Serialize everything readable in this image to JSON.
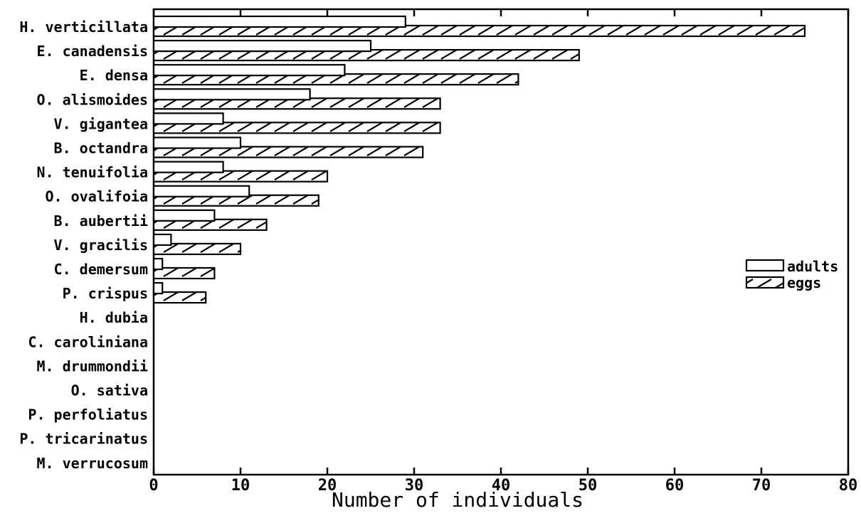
{
  "chart_data": {
    "type": "bar",
    "orientation": "horizontal",
    "title": "",
    "xlabel": "Number of individuals",
    "ylabel": "",
    "xlim": [
      0,
      80
    ],
    "x_ticks": [
      0,
      10,
      20,
      30,
      40,
      50,
      60,
      70,
      80
    ],
    "grid": false,
    "legend_position": "right",
    "categories": [
      "H. verticillata",
      "E. canadensis",
      "E. densa",
      "O. alismoides",
      "V. gigantea",
      "B. octandra",
      "N. tenuifolia",
      "O. ovalifoia",
      "B. aubertii",
      "V. gracilis",
      "C. demersum",
      "P. crispus",
      "H. dubia",
      "C. caroliniana",
      "M. drummondii",
      "O. sativa",
      "P. perfoliatus",
      "P. tricarinatus",
      "M. verrucosum"
    ],
    "series": [
      {
        "name": "adults",
        "pattern": "open",
        "values": [
          29,
          25,
          22,
          18,
          8,
          10,
          8,
          11,
          7,
          2,
          1,
          1,
          0,
          0,
          0,
          0,
          0,
          0,
          0
        ]
      },
      {
        "name": "eggs",
        "pattern": "hatched",
        "values": [
          75,
          49,
          42,
          33,
          33,
          31,
          20,
          19,
          13,
          10,
          7,
          6,
          0,
          0,
          0,
          0,
          0,
          0,
          0
        ]
      }
    ]
  },
  "colors": {
    "ink": "#000000",
    "background": "#ffffff"
  }
}
